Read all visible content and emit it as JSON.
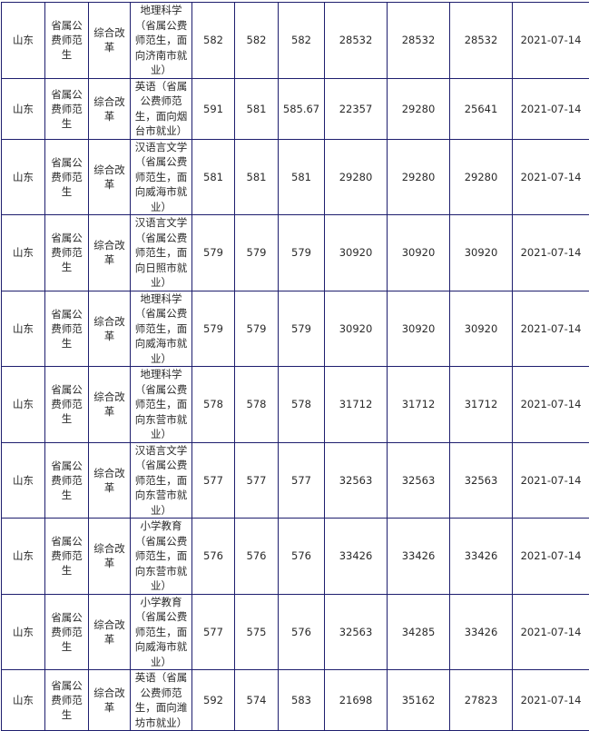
{
  "table": {
    "rows": [
      {
        "province": "山东",
        "type": "省属公费师范生",
        "category": "综合改革",
        "major": "地理科学（省属公费师范生，面向济南市就业）",
        "max_score": "582",
        "min_score": "582",
        "avg_score": "582",
        "max_rank": "28532",
        "min_rank": "28532",
        "avg_rank": "28532",
        "date": "2021-07-14"
      },
      {
        "province": "山东",
        "type": "省属公费师范生",
        "category": "综合改革",
        "major": "英语（省属公费师范生，面向烟台市就业）",
        "max_score": "591",
        "min_score": "581",
        "avg_score": "585.67",
        "max_rank": "22357",
        "min_rank": "29280",
        "avg_rank": "25641",
        "date": "2021-07-14"
      },
      {
        "province": "山东",
        "type": "省属公费师范生",
        "category": "综合改革",
        "major": "汉语言文学（省属公费师范生，面向威海市就业）",
        "max_score": "581",
        "min_score": "581",
        "avg_score": "581",
        "max_rank": "29280",
        "min_rank": "29280",
        "avg_rank": "29280",
        "date": "2021-07-14"
      },
      {
        "province": "山东",
        "type": "省属公费师范生",
        "category": "综合改革",
        "major": "汉语言文学（省属公费师范生，面向日照市就业）",
        "max_score": "579",
        "min_score": "579",
        "avg_score": "579",
        "max_rank": "30920",
        "min_rank": "30920",
        "avg_rank": "30920",
        "date": "2021-07-14"
      },
      {
        "province": "山东",
        "type": "省属公费师范生",
        "category": "综合改革",
        "major": "地理科学（省属公费师范生，面向威海市就业）",
        "max_score": "579",
        "min_score": "579",
        "avg_score": "579",
        "max_rank": "30920",
        "min_rank": "30920",
        "avg_rank": "30920",
        "date": "2021-07-14"
      },
      {
        "province": "山东",
        "type": "省属公费师范生",
        "category": "综合改革",
        "major": "地理科学（省属公费师范生，面向东营市就业）",
        "max_score": "578",
        "min_score": "578",
        "avg_score": "578",
        "max_rank": "31712",
        "min_rank": "31712",
        "avg_rank": "31712",
        "date": "2021-07-14"
      },
      {
        "province": "山东",
        "type": "省属公费师范生",
        "category": "综合改革",
        "major": "汉语言文学（省属公费师范生，面向东营市就业）",
        "max_score": "577",
        "min_score": "577",
        "avg_score": "577",
        "max_rank": "32563",
        "min_rank": "32563",
        "avg_rank": "32563",
        "date": "2021-07-14"
      },
      {
        "province": "山东",
        "type": "省属公费师范生",
        "category": "综合改革",
        "major": "小学教育（省属公费师范生，面向东营市就业）",
        "max_score": "576",
        "min_score": "576",
        "avg_score": "576",
        "max_rank": "33426",
        "min_rank": "33426",
        "avg_rank": "33426",
        "date": "2021-07-14"
      },
      {
        "province": "山东",
        "type": "省属公费师范生",
        "category": "综合改革",
        "major": "小学教育（省属公费师范生，面向威海市就业）",
        "max_score": "577",
        "min_score": "575",
        "avg_score": "576",
        "max_rank": "32563",
        "min_rank": "34285",
        "avg_rank": "33426",
        "date": "2021-07-14"
      },
      {
        "province": "山东",
        "type": "省属公费师范生",
        "category": "综合改革",
        "major": "英语（省属公费师范生，面向潍坊市就业）",
        "max_score": "592",
        "min_score": "574",
        "avg_score": "583",
        "max_rank": "21698",
        "min_rank": "35162",
        "avg_rank": "27823",
        "date": "2021-07-14"
      }
    ]
  }
}
